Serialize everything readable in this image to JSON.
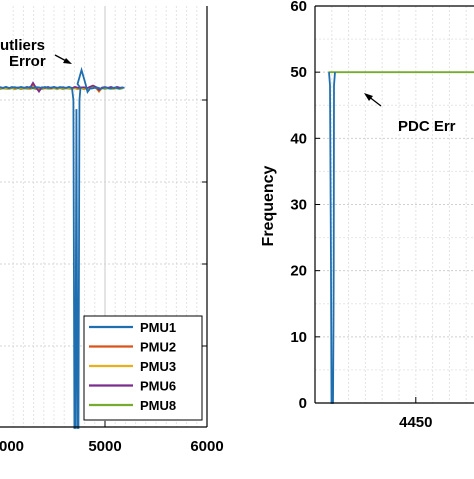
{
  "chart_data": [
    {
      "type": "line",
      "panel": "left",
      "xlim": [
        4000,
        6000
      ],
      "x_ticks": [
        "5000",
        "6000"
      ],
      "x_tick_values": [
        5000,
        6000
      ],
      "x_partial_tick": "000",
      "grid": true,
      "annotation": [
        "utliers",
        "Error"
      ],
      "legend": {
        "placement": "bottom-right",
        "entries": [
          "PMU1",
          "PMU2",
          "PMU3",
          "PMU6",
          "PMU8"
        ]
      },
      "series": [
        {
          "name": "PMU1",
          "color": "#1f6fb0"
        },
        {
          "name": "PMU2",
          "color": "#d9541a"
        },
        {
          "name": "PMU3",
          "color": "#e8b01e"
        },
        {
          "name": "PMU6",
          "color": "#7b2d8e"
        },
        {
          "name": "PMU8",
          "color": "#76ab2f"
        }
      ]
    },
    {
      "type": "line",
      "panel": "right",
      "ylabel": "Frequency",
      "ylim": [
        0,
        60
      ],
      "y_ticks": [
        0,
        10,
        20,
        30,
        40,
        50,
        60
      ],
      "x_ticks": [
        "4450"
      ],
      "x_tick_values": [
        4450
      ],
      "grid": true,
      "annotation": "PDC Err",
      "series": [
        {
          "name": "PMU8",
          "color": "#76ab2f",
          "values": [
            [
              4424,
              50
            ],
            [
              4560,
              50
            ]
          ]
        },
        {
          "name": "PMU1",
          "color": "#1f6fb0",
          "values": [
            [
              4423,
              50
            ],
            [
              4424,
              48
            ],
            [
              4425,
              0
            ],
            [
              4426,
              0
            ],
            [
              4427,
              0
            ],
            [
              4428,
              48
            ],
            [
              4429,
              50
            ]
          ]
        }
      ]
    }
  ]
}
